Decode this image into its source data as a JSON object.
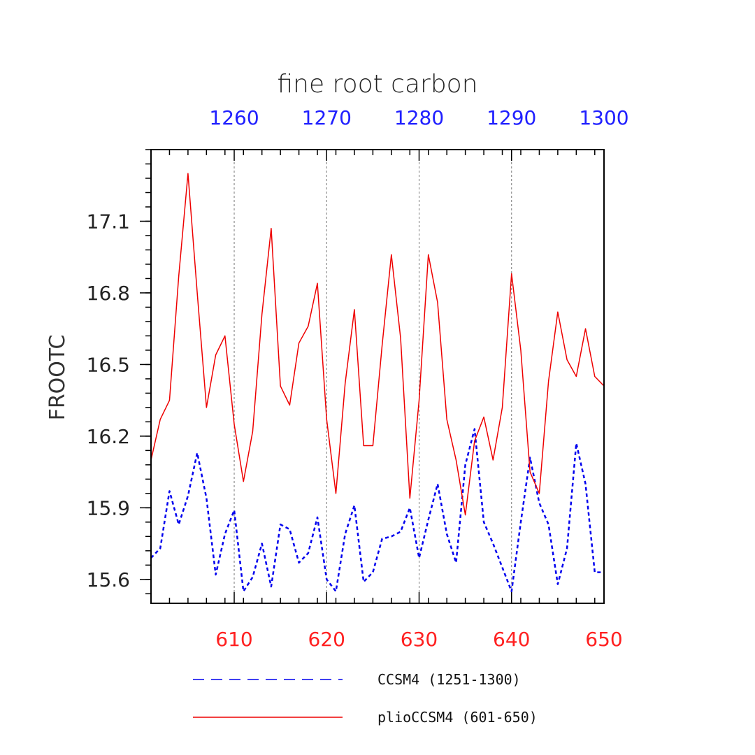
{
  "chart_data": {
    "type": "line",
    "title": "fine root carbon",
    "ylabel": "FROOTC",
    "ylim": [
      15.5,
      17.4
    ],
    "yticks": [
      "15.6",
      "15.9",
      "16.2",
      "16.5",
      "16.8",
      "17.1"
    ],
    "bottom_axis": {
      "range": [
        601,
        650
      ],
      "ticks": [
        "610",
        "620",
        "630",
        "640",
        "650"
      ],
      "color": "#ff2020"
    },
    "top_axis": {
      "range": [
        1251,
        1300
      ],
      "ticks": [
        "1260",
        "1270",
        "1280",
        "1290",
        "1300"
      ],
      "color": "#2020ff"
    },
    "grid": "vertical dashed at major ticks",
    "legend_placement": "bottom",
    "series": [
      {
        "name": "CCSM4 (1251-1300)",
        "color": "#0000ee",
        "style": "dashed",
        "axis": "top",
        "x": [
          1251,
          1252,
          1253,
          1254,
          1255,
          1256,
          1257,
          1258,
          1259,
          1260,
          1261,
          1262,
          1263,
          1264,
          1265,
          1266,
          1267,
          1268,
          1269,
          1270,
          1271,
          1272,
          1273,
          1274,
          1275,
          1276,
          1277,
          1278,
          1279,
          1280,
          1281,
          1282,
          1283,
          1284,
          1285,
          1286,
          1287,
          1288,
          1289,
          1290,
          1291,
          1292,
          1293,
          1294,
          1295,
          1296,
          1297,
          1298,
          1299,
          1300
        ],
        "values": [
          15.69,
          15.73,
          15.97,
          15.83,
          15.95,
          16.13,
          15.94,
          15.62,
          15.79,
          15.89,
          15.55,
          15.61,
          15.75,
          15.57,
          15.83,
          15.81,
          15.67,
          15.71,
          15.86,
          15.6,
          15.55,
          15.79,
          15.91,
          15.59,
          15.63,
          15.77,
          15.78,
          15.8,
          15.9,
          15.69,
          15.85,
          16.0,
          15.79,
          15.67,
          16.08,
          16.23,
          15.84,
          15.75,
          15.65,
          15.55,
          15.84,
          16.11,
          15.92,
          15.83,
          15.58,
          15.73,
          16.17,
          16.0,
          15.63,
          15.63
        ]
      },
      {
        "name": "plioCCSM4 (601-650)",
        "color": "#ee0000",
        "style": "solid",
        "axis": "bottom",
        "x": [
          601,
          602,
          603,
          604,
          605,
          606,
          607,
          608,
          609,
          610,
          611,
          612,
          613,
          614,
          615,
          616,
          617,
          618,
          619,
          620,
          621,
          622,
          623,
          624,
          625,
          626,
          627,
          628,
          629,
          630,
          631,
          632,
          633,
          634,
          635,
          636,
          637,
          638,
          639,
          640,
          641,
          642,
          643,
          644,
          645,
          646,
          647,
          648,
          649,
          650
        ],
        "values": [
          16.1,
          16.27,
          16.35,
          16.87,
          17.3,
          16.8,
          16.32,
          16.54,
          16.62,
          16.25,
          16.01,
          16.22,
          16.71,
          17.07,
          16.41,
          16.33,
          16.59,
          16.66,
          16.84,
          16.27,
          15.96,
          16.42,
          16.73,
          16.16,
          16.16,
          16.58,
          16.96,
          16.61,
          15.94,
          16.35,
          16.96,
          16.76,
          16.27,
          16.1,
          15.87,
          16.18,
          16.28,
          16.1,
          16.32,
          16.88,
          16.56,
          16.05,
          15.96,
          16.43,
          16.72,
          16.52,
          16.45,
          16.65,
          16.45,
          16.41
        ]
      }
    ]
  }
}
